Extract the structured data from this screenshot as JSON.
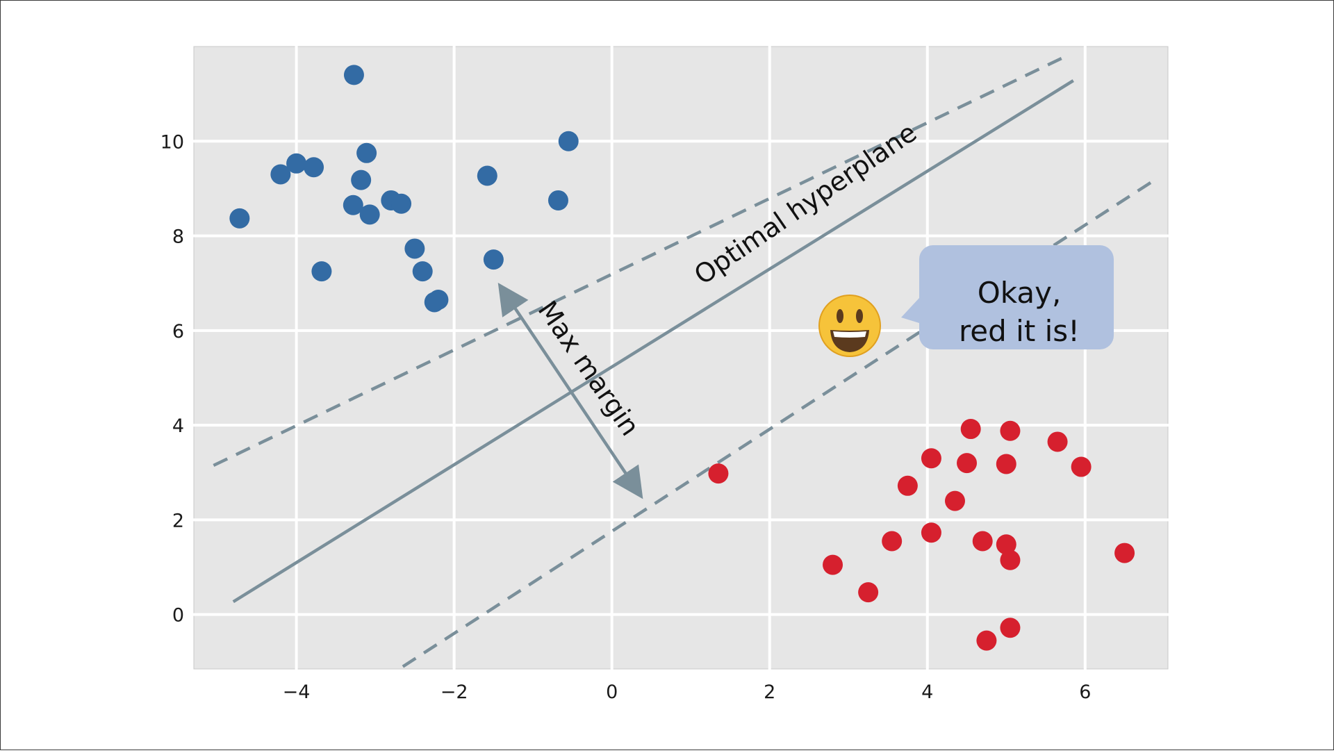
{
  "chart_data": {
    "type": "scatter",
    "title": "",
    "xlabel": "",
    "ylabel": "",
    "xlim": [
      -5.3,
      7.05
    ],
    "ylim": [
      -1.15,
      12.0
    ],
    "xticks": [
      -4,
      -2,
      0,
      2,
      4,
      6
    ],
    "yticks": [
      0,
      2,
      4,
      6,
      8,
      10
    ],
    "xtick_labels": [
      "−4",
      "−2",
      "0",
      "2",
      "4",
      "6"
    ],
    "ytick_labels": [
      "0",
      "2",
      "4",
      "6",
      "8",
      "10"
    ],
    "grid": true,
    "colors": {
      "background": "#e6e6e6",
      "grid": "#ffffff",
      "line": "#7a8f9a",
      "blue": "#336ba4",
      "red": "#d6202e",
      "bubble": "#b0c1df"
    },
    "series": [
      {
        "color": "#336ba4",
        "points": [
          [
            -3.27,
            11.4
          ],
          [
            -0.55,
            10.0
          ],
          [
            -3.11,
            9.75
          ],
          [
            -4.2,
            9.3
          ],
          [
            -4.0,
            9.53
          ],
          [
            -3.78,
            9.45
          ],
          [
            -1.58,
            9.27
          ],
          [
            -3.18,
            9.18
          ],
          [
            -2.8,
            8.75
          ],
          [
            -2.67,
            8.68
          ],
          [
            -3.28,
            8.65
          ],
          [
            -0.68,
            8.75
          ],
          [
            -3.07,
            8.45
          ],
          [
            -4.72,
            8.37
          ],
          [
            -2.5,
            7.73
          ],
          [
            -1.5,
            7.5
          ],
          [
            -3.68,
            7.25
          ],
          [
            -2.4,
            7.25
          ],
          [
            -2.2,
            6.65
          ],
          [
            -2.25,
            6.6
          ]
        ]
      },
      {
        "color": "#d6202e",
        "points": [
          [
            4.55,
            3.92
          ],
          [
            5.05,
            3.88
          ],
          [
            5.65,
            3.65
          ],
          [
            4.05,
            3.3
          ],
          [
            4.5,
            3.2
          ],
          [
            5.0,
            3.18
          ],
          [
            5.95,
            3.12
          ],
          [
            1.35,
            2.98
          ],
          [
            3.75,
            2.72
          ],
          [
            4.35,
            2.4
          ],
          [
            3.55,
            1.55
          ],
          [
            4.05,
            1.73
          ],
          [
            4.7,
            1.55
          ],
          [
            5.0,
            1.48
          ],
          [
            5.05,
            1.15
          ],
          [
            6.5,
            1.3
          ],
          [
            2.8,
            1.05
          ],
          [
            3.25,
            0.47
          ],
          [
            5.05,
            -0.28
          ],
          [
            4.75,
            -0.55
          ]
        ]
      }
    ],
    "lines": [
      {
        "name": "Optimal hyperplane",
        "style": "solid",
        "p1": [
          -4.8,
          0.27
        ],
        "p2": [
          5.85,
          11.28
        ]
      },
      {
        "style": "dashed",
        "p1": [
          -5.05,
          3.15
        ],
        "p2": [
          5.7,
          11.75
        ]
      },
      {
        "style": "dashed",
        "p1": [
          -2.65,
          -1.1
        ],
        "p2": [
          6.9,
          9.2
        ]
      }
    ],
    "margin_arrow": {
      "p1": [
        -1.4,
        6.9
      ],
      "p2": [
        0.35,
        2.55
      ]
    },
    "annotations": {
      "hyperplane_label": "Optimal hyperplane",
      "margin_label": "Max margin",
      "emoji": "😀",
      "bubble_line1": "Okay,",
      "bubble_line2": "red it is!"
    }
  }
}
